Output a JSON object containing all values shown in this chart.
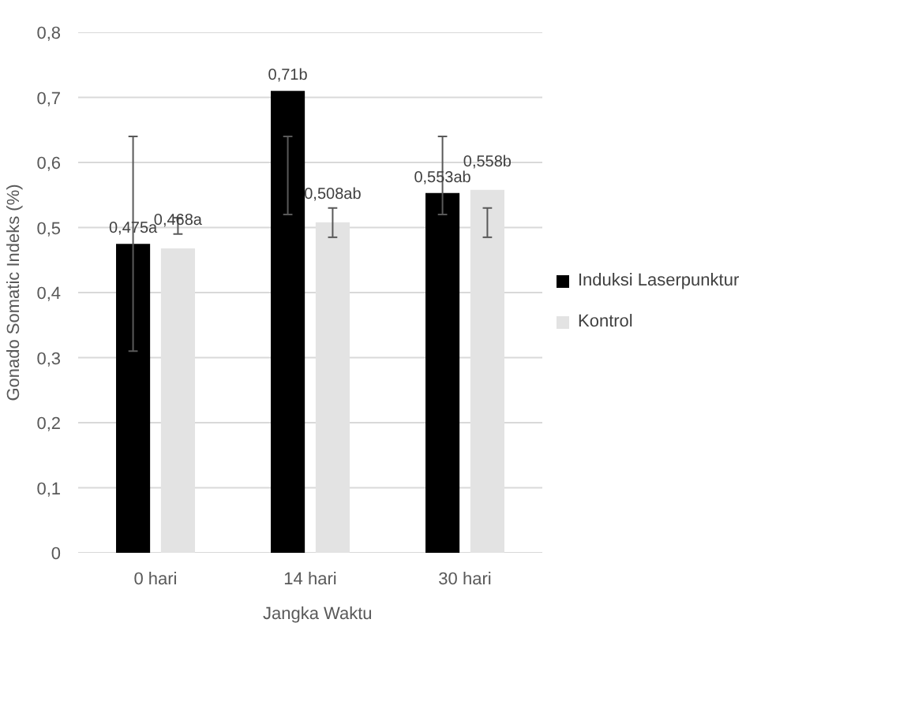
{
  "chart_data": {
    "type": "bar",
    "xlabel": "Jangka Waktu",
    "ylabel": "Gonado Somatic Indeks (%)",
    "categories": [
      "0 hari",
      "14 hari",
      "30 hari"
    ],
    "series": [
      {
        "name": "Induksi Laserpunktur",
        "color": "#000000",
        "values": [
          0.475,
          0.71,
          0.553
        ],
        "value_labels": [
          "0,475a",
          "0,71b",
          "0,553ab"
        ],
        "errors": [
          [
            0.31,
            0.64
          ],
          [
            0.52,
            0.64
          ],
          [
            0.52,
            0.64
          ]
        ]
      },
      {
        "name": "Kontrol",
        "color": "#e3e3e3",
        "values": [
          0.468,
          0.508,
          0.558
        ],
        "value_labels": [
          "0,468a",
          "0,508ab",
          "0,558b"
        ],
        "errors": [
          [
            0.49,
            0.515
          ],
          [
            0.485,
            0.53
          ],
          [
            0.485,
            0.53
          ]
        ]
      }
    ],
    "ylim": [
      0,
      0.8
    ],
    "yticks": [
      {
        "value": 0,
        "label": "0"
      },
      {
        "value": 0.1,
        "label": "0,1"
      },
      {
        "value": 0.2,
        "label": "0,2"
      },
      {
        "value": 0.3,
        "label": "0,3"
      },
      {
        "value": 0.4,
        "label": "0,4"
      },
      {
        "value": 0.5,
        "label": "0,5"
      },
      {
        "value": 0.6,
        "label": "0,6"
      },
      {
        "value": 0.7,
        "label": "0,7"
      },
      {
        "value": 0.8,
        "label": "0,8"
      }
    ],
    "grid": "y",
    "legend": "right"
  }
}
